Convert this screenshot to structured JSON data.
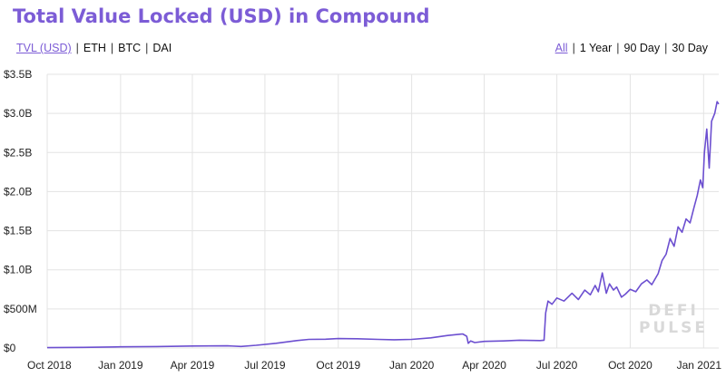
{
  "header": {
    "title": "Total Value Locked (USD) in Compound"
  },
  "asset_toggles": [
    {
      "label": "TVL (USD)",
      "active": true
    },
    {
      "label": "ETH",
      "active": false
    },
    {
      "label": "BTC",
      "active": false
    },
    {
      "label": "DAI",
      "active": false
    }
  ],
  "range_toggles": [
    {
      "label": "All",
      "active": true
    },
    {
      "label": "1 Year",
      "active": false
    },
    {
      "label": "90 Day",
      "active": false
    },
    {
      "label": "30 Day",
      "active": false
    }
  ],
  "watermark": {
    "line1": "DEFI",
    "line2": "PULSE"
  },
  "colors": {
    "accent": "#7c5cd6",
    "line": "#6c4fd0",
    "grid": "#e3e3e3"
  },
  "chart_data": {
    "type": "line",
    "title": "Total Value Locked (USD) in Compound",
    "xlabel": "",
    "ylabel": "",
    "grid": true,
    "xlim": [
      "2018-10-01",
      "2021-01-20"
    ],
    "ylim": [
      0,
      3500000000
    ],
    "y_ticks": [
      {
        "value": 0,
        "label": "$0"
      },
      {
        "value": 500000000,
        "label": "$500M"
      },
      {
        "value": 1000000000,
        "label": "$1.0B"
      },
      {
        "value": 1500000000,
        "label": "$1.5B"
      },
      {
        "value": 2000000000,
        "label": "$2.0B"
      },
      {
        "value": 2500000000,
        "label": "$2.5B"
      },
      {
        "value": 3000000000,
        "label": "$3.0B"
      },
      {
        "value": 3500000000,
        "label": "$3.5B"
      }
    ],
    "x_ticks": [
      {
        "date": "2018-10-01",
        "label": "Oct 2018"
      },
      {
        "date": "2019-01-01",
        "label": "Jan 2019"
      },
      {
        "date": "2019-04-01",
        "label": "Apr 2019"
      },
      {
        "date": "2019-07-01",
        "label": "Jul 2019"
      },
      {
        "date": "2019-10-01",
        "label": "Oct 2019"
      },
      {
        "date": "2020-01-01",
        "label": "Jan 2020"
      },
      {
        "date": "2020-04-01",
        "label": "Apr 2020"
      },
      {
        "date": "2020-07-01",
        "label": "Jul 2020"
      },
      {
        "date": "2020-10-01",
        "label": "Oct 2020"
      },
      {
        "date": "2021-01-01",
        "label": "Jan 2021"
      }
    ],
    "series": [
      {
        "points": [
          [
            "2018-10-01",
            5000000
          ],
          [
            "2018-11-15",
            8000000
          ],
          [
            "2019-01-01",
            15000000
          ],
          [
            "2019-02-15",
            18000000
          ],
          [
            "2019-04-01",
            25000000
          ],
          [
            "2019-05-15",
            28000000
          ],
          [
            "2019-06-01",
            20000000
          ],
          [
            "2019-06-20",
            35000000
          ],
          [
            "2019-07-15",
            60000000
          ],
          [
            "2019-08-10",
            95000000
          ],
          [
            "2019-08-25",
            110000000
          ],
          [
            "2019-09-15",
            112000000
          ],
          [
            "2019-10-01",
            120000000
          ],
          [
            "2019-10-25",
            118000000
          ],
          [
            "2019-11-20",
            110000000
          ],
          [
            "2019-12-10",
            105000000
          ],
          [
            "2020-01-01",
            110000000
          ],
          [
            "2020-01-25",
            130000000
          ],
          [
            "2020-02-15",
            160000000
          ],
          [
            "2020-03-05",
            180000000
          ],
          [
            "2020-03-10",
            150000000
          ],
          [
            "2020-03-12",
            60000000
          ],
          [
            "2020-03-15",
            90000000
          ],
          [
            "2020-03-20",
            70000000
          ],
          [
            "2020-04-01",
            85000000
          ],
          [
            "2020-04-25",
            90000000
          ],
          [
            "2020-05-15",
            100000000
          ],
          [
            "2020-06-10",
            95000000
          ],
          [
            "2020-06-15",
            100000000
          ],
          [
            "2020-06-17",
            450000000
          ],
          [
            "2020-06-20",
            600000000
          ],
          [
            "2020-06-25",
            560000000
          ],
          [
            "2020-07-01",
            640000000
          ],
          [
            "2020-07-10",
            600000000
          ],
          [
            "2020-07-20",
            700000000
          ],
          [
            "2020-07-28",
            620000000
          ],
          [
            "2020-08-05",
            740000000
          ],
          [
            "2020-08-12",
            680000000
          ],
          [
            "2020-08-18",
            800000000
          ],
          [
            "2020-08-22",
            720000000
          ],
          [
            "2020-08-27",
            960000000
          ],
          [
            "2020-09-01",
            700000000
          ],
          [
            "2020-09-05",
            820000000
          ],
          [
            "2020-09-10",
            740000000
          ],
          [
            "2020-09-14",
            780000000
          ],
          [
            "2020-09-20",
            650000000
          ],
          [
            "2020-09-25",
            690000000
          ],
          [
            "2020-10-01",
            750000000
          ],
          [
            "2020-10-08",
            720000000
          ],
          [
            "2020-10-15",
            820000000
          ],
          [
            "2020-10-22",
            870000000
          ],
          [
            "2020-10-28",
            810000000
          ],
          [
            "2020-11-05",
            950000000
          ],
          [
            "2020-11-10",
            1120000000
          ],
          [
            "2020-11-15",
            1200000000
          ],
          [
            "2020-11-20",
            1400000000
          ],
          [
            "2020-11-25",
            1300000000
          ],
          [
            "2020-11-30",
            1550000000
          ],
          [
            "2020-12-05",
            1480000000
          ],
          [
            "2020-12-10",
            1650000000
          ],
          [
            "2020-12-15",
            1600000000
          ],
          [
            "2020-12-20",
            1800000000
          ],
          [
            "2020-12-24",
            1950000000
          ],
          [
            "2020-12-28",
            2150000000
          ],
          [
            "2020-12-31",
            2050000000
          ],
          [
            "2021-01-02",
            2500000000
          ],
          [
            "2021-01-05",
            2800000000
          ],
          [
            "2021-01-08",
            2300000000
          ],
          [
            "2021-01-11",
            2900000000
          ],
          [
            "2021-01-15",
            3000000000
          ],
          [
            "2021-01-18",
            3150000000
          ],
          [
            "2021-01-20",
            3120000000
          ]
        ]
      }
    ]
  }
}
